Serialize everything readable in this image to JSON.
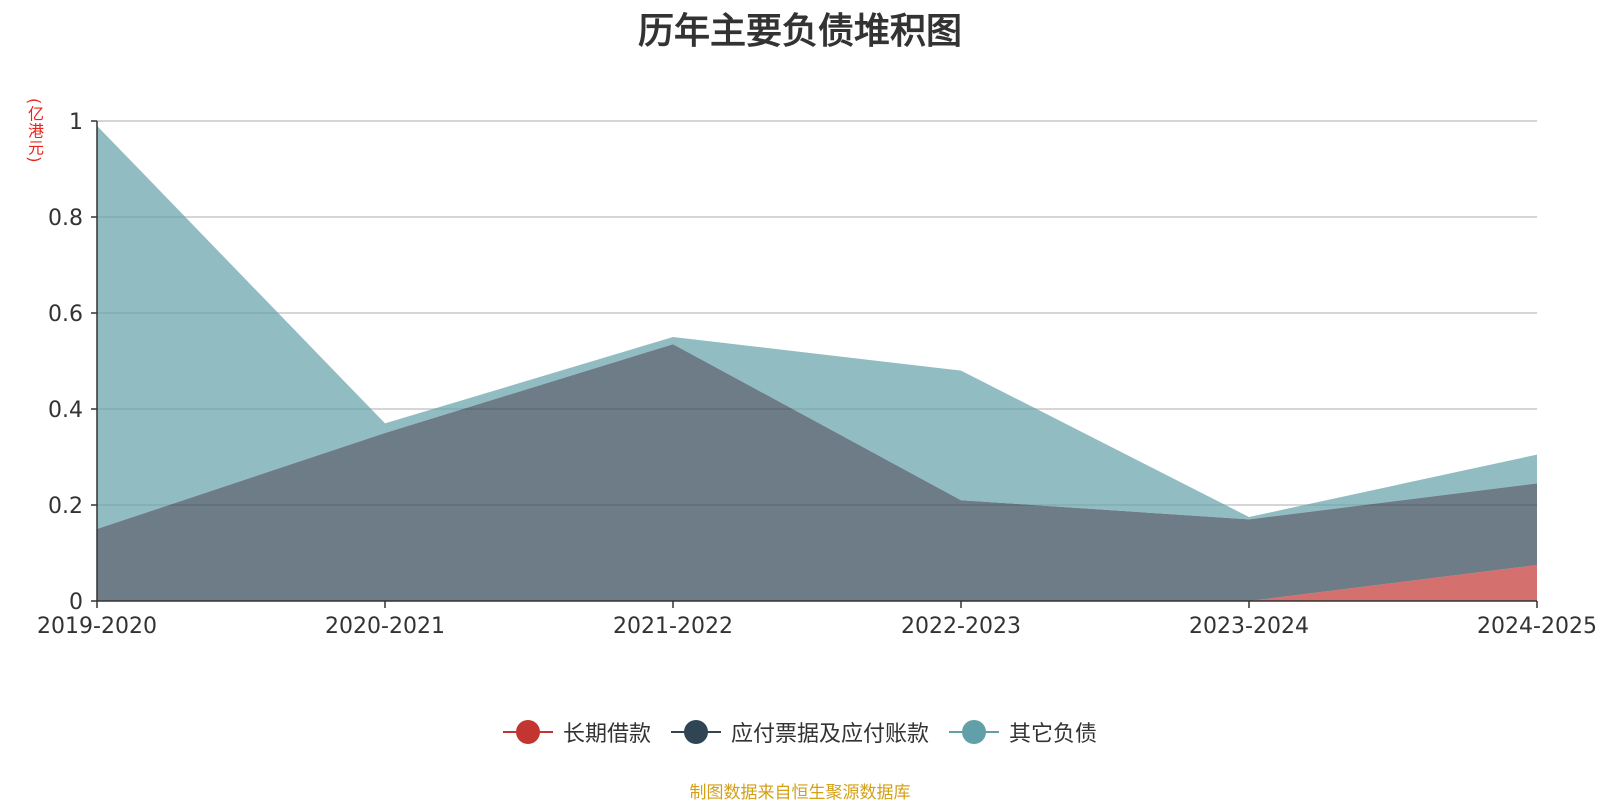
{
  "title": "历年主要负债堆积图",
  "unit_label": "(亿港元)",
  "source": "制图数据来自恒生聚源数据库",
  "chart_data": {
    "type": "area",
    "title": "历年主要负债堆积图",
    "ylabel": "(亿港元)",
    "categories": [
      "2019-2020",
      "2020-2021",
      "2021-2022",
      "2022-2023",
      "2023-2024",
      "2024-2025"
    ],
    "ylim": [
      0,
      1
    ],
    "yticks": [
      0,
      0.2,
      0.4,
      0.6,
      0.8,
      1
    ],
    "ytick_labels": [
      "0",
      "0.2",
      "0.4",
      "0.6",
      "0.8",
      "1"
    ],
    "grid": true,
    "legend_position": "bottom",
    "series": [
      {
        "name": "长期借款",
        "color": "#c23531",
        "values": [
          0,
          0,
          0,
          0,
          0,
          0.075
        ]
      },
      {
        "name": "应付票据及应付账款",
        "color": "#2f4554",
        "values": [
          0.15,
          0.35,
          0.535,
          0.21,
          0.17,
          0.17
        ]
      },
      {
        "name": "其它负债",
        "color": "#61a0a8",
        "values": [
          0.84,
          0.02,
          0.015,
          0.27,
          0.005,
          0.06
        ]
      }
    ]
  }
}
